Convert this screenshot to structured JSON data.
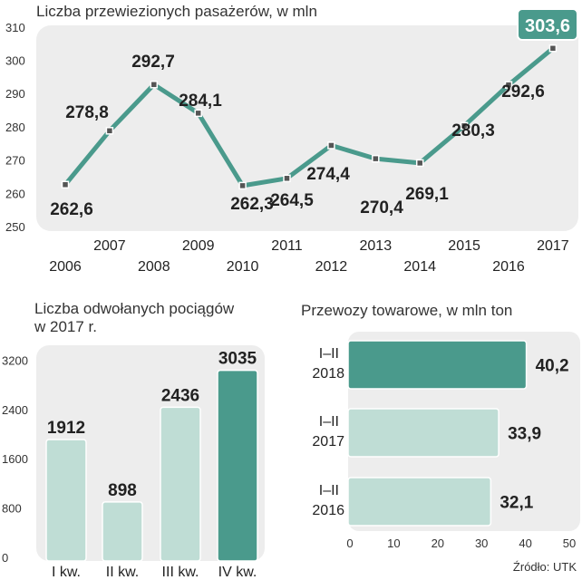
{
  "chart_data": [
    {
      "type": "line",
      "title": "Liczba przewiezionych pasażerów, w mln",
      "x": [
        "2006",
        "2007",
        "2008",
        "2009",
        "2010",
        "2011",
        "2012",
        "2013",
        "2014",
        "2015",
        "2016",
        "2017"
      ],
      "values": [
        262.6,
        278.8,
        292.7,
        284.1,
        262.3,
        264.5,
        274.4,
        270.4,
        269.1,
        280.3,
        292.6,
        303.6
      ],
      "labels": [
        "262,6",
        "278,8",
        "292,7",
        "284,1",
        "262,3",
        "264,5",
        "274,4",
        "270,4",
        "269,1",
        "280,3",
        "292,6",
        "303,6"
      ],
      "highlight_index": 11,
      "yticks": [
        "250",
        "260",
        "270",
        "280",
        "290",
        "300",
        "310"
      ],
      "ylim": [
        250,
        310
      ]
    },
    {
      "type": "bar",
      "title": "Liczba odwołanych pociągów w 2017 r.",
      "title_lines": [
        "Liczba odwołanych pociągów",
        "w 2017 r."
      ],
      "categories": [
        "I kw.",
        "II kw.",
        "III kw.",
        "IV kw."
      ],
      "values": [
        1912,
        898,
        2436,
        3035
      ],
      "labels": [
        "1912",
        "898",
        "2436",
        "3035"
      ],
      "highlight_index": 3,
      "yticks": [
        "0",
        "800",
        "1600",
        "2400",
        "3200"
      ],
      "ylim": [
        0,
        3200
      ]
    },
    {
      "type": "bar",
      "orientation": "horizontal",
      "title": "Przewozy towarowe, w mln ton",
      "categories": [
        [
          "I–II",
          "2018"
        ],
        [
          "I–II",
          "2017"
        ],
        [
          "I–II",
          "2016"
        ]
      ],
      "values": [
        40.2,
        33.9,
        32.1
      ],
      "labels": [
        "40,2",
        "33,9",
        "32,1"
      ],
      "highlight_index": 0,
      "xticks": [
        "0",
        "10",
        "20",
        "30",
        "40",
        "50"
      ],
      "xlim": [
        0,
        50
      ]
    }
  ],
  "source": "Źródło: UTK",
  "colors": {
    "accent": "#4a9a8c",
    "light": "#bfddd5",
    "panel": "#ededed",
    "text": "#222222"
  }
}
